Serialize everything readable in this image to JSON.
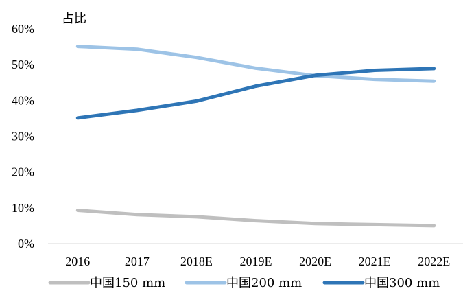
{
  "chart_data": {
    "type": "line",
    "title": "",
    "xlabel": "",
    "ylabel": "占比",
    "categories": [
      "2016",
      "2017",
      "2018E",
      "2019E",
      "2020E",
      "2021E",
      "2022E"
    ],
    "y_ticks": [
      "0%",
      "10%",
      "20%",
      "30%",
      "40%",
      "50%",
      "60%"
    ],
    "ylim": [
      0,
      60
    ],
    "grid": false,
    "legend_position": "bottom",
    "series": [
      {
        "name": "中国150 mm",
        "color": "#bfbfbf",
        "values": [
          9.3,
          8.1,
          7.5,
          6.4,
          5.6,
          5.3,
          5.0
        ]
      },
      {
        "name": "中国200 mm",
        "color": "#9dc3e6",
        "values": [
          55.1,
          54.3,
          52.0,
          49.0,
          46.9,
          45.9,
          45.4
        ]
      },
      {
        "name": "中国300 mm",
        "color": "#2e75b6",
        "values": [
          35.1,
          37.2,
          39.8,
          44.0,
          47.0,
          48.4,
          48.9
        ]
      }
    ]
  }
}
